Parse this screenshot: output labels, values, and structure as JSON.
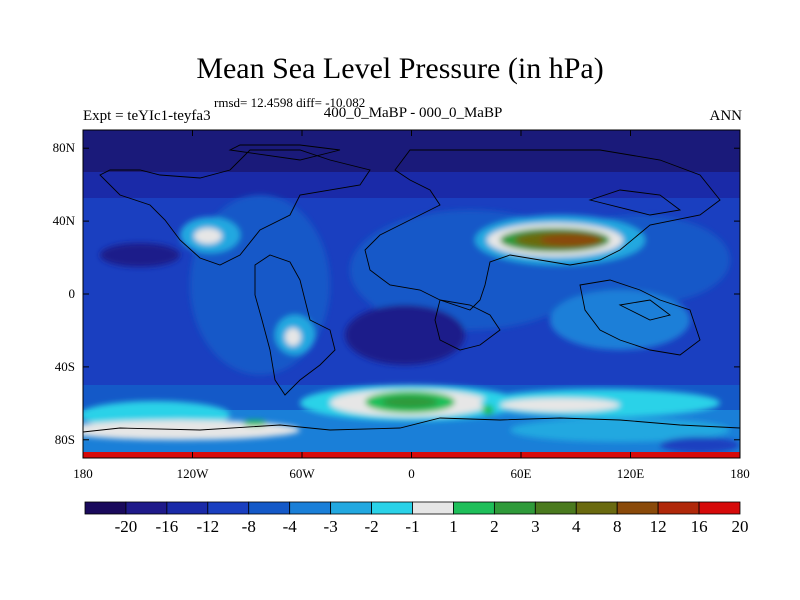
{
  "title": "Mean Sea Level Pressure (in hPa)",
  "stats_line": "rmsd= 12.4598 diff= -10.082",
  "left_label": "Expt = teYIc1-teyfa3",
  "center_label": "400_0_MaBP - 000_0_MaBP",
  "right_label": "ANN",
  "y_ticks": [
    "80N",
    "40N",
    "0",
    "40S",
    "80S"
  ],
  "y_tick_lats": [
    80,
    40,
    0,
    -40,
    -80
  ],
  "x_ticks": [
    "180",
    "120W",
    "60W",
    "0",
    "60E",
    "120E",
    "180"
  ],
  "x_tick_lons": [
    -180,
    -120,
    -60,
    0,
    60,
    120,
    180
  ],
  "colorbar": {
    "labels": [
      "-20",
      "-16",
      "-12",
      "-8",
      "-4",
      "-3",
      "-2",
      "-1",
      "1",
      "2",
      "3",
      "4",
      "8",
      "12",
      "16",
      "20"
    ],
    "colors": [
      "#1a0a5c",
      "#1f1a8a",
      "#1a2aa8",
      "#1a3fc0",
      "#1459c8",
      "#1a7fd8",
      "#22a8e0",
      "#2ad2e8",
      "#e6e6e6",
      "#1fbf5a",
      "#2f9a3a",
      "#4a7a1e",
      "#6a6a10",
      "#8a4a0a",
      "#b0280a",
      "#d60a0a"
    ]
  },
  "chart_data": {
    "type": "heatmap",
    "title": "Mean Sea Level Pressure (in hPa)",
    "units": "hPa",
    "xlim": [
      -180,
      180
    ],
    "ylim": [
      -90,
      90
    ],
    "levels": [
      -20,
      -16,
      -12,
      -8,
      -4,
      -3,
      -2,
      -1,
      1,
      2,
      3,
      4,
      8,
      12,
      16,
      20
    ],
    "rmsd": 12.4598,
    "diff": -10.082
  }
}
